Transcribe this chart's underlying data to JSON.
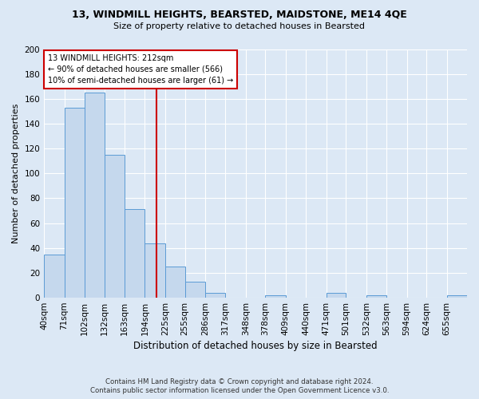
{
  "title": "13, WINDMILL HEIGHTS, BEARSTED, MAIDSTONE, ME14 4QE",
  "subtitle": "Size of property relative to detached houses in Bearsted",
  "xlabel": "Distribution of detached houses by size in Bearsted",
  "ylabel": "Number of detached properties",
  "bar_labels": [
    "40sqm",
    "71sqm",
    "102sqm",
    "132sqm",
    "163sqm",
    "194sqm",
    "225sqm",
    "255sqm",
    "286sqm",
    "317sqm",
    "348sqm",
    "378sqm",
    "409sqm",
    "440sqm",
    "471sqm",
    "501sqm",
    "532sqm",
    "563sqm",
    "594sqm",
    "624sqm",
    "655sqm"
  ],
  "bar_values": [
    35,
    153,
    165,
    115,
    71,
    44,
    25,
    13,
    4,
    0,
    0,
    2,
    0,
    0,
    4,
    0,
    2,
    0,
    0,
    0,
    2
  ],
  "bar_color": "#c5d8ed",
  "bar_edge_color": "#5b9bd5",
  "vline_x": 212,
  "vline_color": "#cc0000",
  "bin_edges": [
    40,
    71,
    102,
    132,
    163,
    194,
    225,
    255,
    286,
    317,
    348,
    378,
    409,
    440,
    471,
    501,
    532,
    563,
    594,
    624,
    655,
    686
  ],
  "annotation_title": "13 WINDMILL HEIGHTS: 212sqm",
  "annotation_line1": "← 90% of detached houses are smaller (566)",
  "annotation_line2": "10% of semi-detached houses are larger (61) →",
  "annotation_box_color": "#ffffff",
  "annotation_box_edge": "#cc0000",
  "ylim": [
    0,
    200
  ],
  "yticks": [
    0,
    20,
    40,
    60,
    80,
    100,
    120,
    140,
    160,
    180,
    200
  ],
  "footer_line1": "Contains HM Land Registry data © Crown copyright and database right 2024.",
  "footer_line2": "Contains public sector information licensed under the Open Government Licence v3.0.",
  "bg_color": "#dce8f5",
  "grid_color": "#ffffff"
}
